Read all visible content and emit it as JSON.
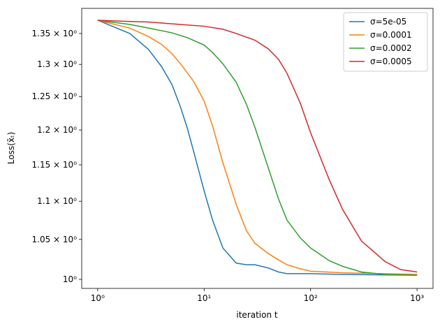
{
  "chart_data": {
    "type": "line",
    "xlabel": "iteration t",
    "ylabel": "Loss(x̃ₜ)",
    "xscale": "log",
    "yscale": "log",
    "xlim": [
      0.708,
      1413
    ],
    "ylim": [
      0.989,
      1.392
    ],
    "xticks": [
      {
        "value": 1,
        "label": "10⁰"
      },
      {
        "value": 10,
        "label": "10¹"
      },
      {
        "value": 100,
        "label": "10²"
      },
      {
        "value": 1000,
        "label": "10³"
      }
    ],
    "yticks": [
      {
        "value": 1,
        "label": "10⁰"
      },
      {
        "value": 1.05,
        "label": "1.05 × 10⁰"
      },
      {
        "value": 1.1,
        "label": "1.1 × 10⁰"
      },
      {
        "value": 1.15,
        "label": "1.15 × 10⁰"
      },
      {
        "value": 1.2,
        "label": "1.2 × 10⁰"
      },
      {
        "value": 1.25,
        "label": "1.25 × 10⁰"
      },
      {
        "value": 1.3,
        "label": "1.3 × 10⁰"
      },
      {
        "value": 1.35,
        "label": "1.35 × 10⁰"
      }
    ],
    "legend": "upper right",
    "series": [
      {
        "name": "σ=5e-05",
        "color": "#1f77b4",
        "x": [
          1,
          2,
          3,
          4,
          5,
          6,
          7,
          8,
          10,
          12,
          15,
          20,
          25,
          30,
          40,
          50,
          60,
          100,
          200,
          1000
        ],
        "values": [
          1.372,
          1.35,
          1.324,
          1.296,
          1.268,
          1.234,
          1.201,
          1.168,
          1.114,
          1.075,
          1.039,
          1.02,
          1.018,
          1.018,
          1.014,
          1.009,
          1.007,
          1.007,
          1.006,
          1.005
        ]
      },
      {
        "name": "σ=0.0001",
        "color": "#ff7f0e",
        "x": [
          1,
          2,
          3,
          4,
          5,
          6,
          8,
          10,
          12,
          15,
          20,
          25,
          30,
          40,
          50,
          60,
          80,
          100,
          200,
          1000
        ],
        "values": [
          1.372,
          1.359,
          1.345,
          1.332,
          1.317,
          1.301,
          1.273,
          1.243,
          1.206,
          1.153,
          1.096,
          1.061,
          1.045,
          1.032,
          1.024,
          1.018,
          1.013,
          1.01,
          1.008,
          1.006
        ]
      },
      {
        "name": "σ=0.0002",
        "color": "#2ca02c",
        "x": [
          1,
          2,
          3,
          5,
          7,
          10,
          12,
          15,
          20,
          25,
          30,
          40,
          50,
          60,
          80,
          100,
          150,
          200,
          300,
          500,
          1000
        ],
        "values": [
          1.372,
          1.365,
          1.359,
          1.351,
          1.343,
          1.331,
          1.319,
          1.301,
          1.272,
          1.238,
          1.204,
          1.146,
          1.103,
          1.075,
          1.052,
          1.039,
          1.023,
          1.016,
          1.009,
          1.006,
          1.005
        ]
      },
      {
        "name": "σ=0.0005",
        "color": "#d62728",
        "x": [
          1,
          2,
          3,
          5,
          10,
          15,
          20,
          30,
          40,
          50,
          60,
          80,
          100,
          150,
          200,
          300,
          500,
          700,
          1000
        ],
        "values": [
          1.372,
          1.37,
          1.369,
          1.366,
          1.362,
          1.357,
          1.35,
          1.339,
          1.325,
          1.308,
          1.286,
          1.24,
          1.196,
          1.129,
          1.089,
          1.048,
          1.022,
          1.012,
          1.009
        ]
      }
    ]
  }
}
